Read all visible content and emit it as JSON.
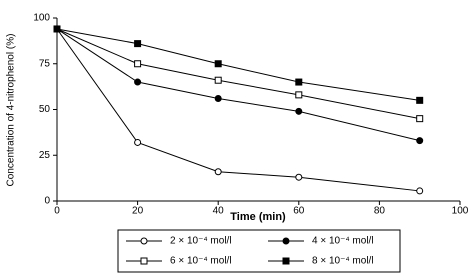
{
  "chart_data": {
    "type": "line",
    "x_label": "Time (min)",
    "y_label": "Concentration of 4-nitrophenol (%)",
    "x": [
      0,
      20,
      40,
      60,
      90
    ],
    "series": [
      {
        "name": "2 × 10⁻⁴ mol/l",
        "color": "#000000",
        "marker": "open-circle",
        "values": [
          94,
          32,
          16,
          13,
          5.5
        ]
      },
      {
        "name": "4 × 10⁻⁴ mol/l",
        "color": "#000000",
        "marker": "filled-circle",
        "values": [
          94,
          65,
          56,
          49,
          33
        ]
      },
      {
        "name": "6 × 10⁻⁴ mol/l",
        "color": "#000000",
        "marker": "open-square",
        "values": [
          94,
          75,
          66,
          58,
          45
        ]
      },
      {
        "name": "8 × 10⁻⁴ mol/l",
        "color": "#000000",
        "marker": "filled-square",
        "values": [
          94,
          86,
          75,
          65,
          55
        ]
      }
    ],
    "xlim": [
      0,
      100
    ],
    "xticks": [
      0,
      20,
      40,
      60,
      80,
      100
    ],
    "ylim": [
      0,
      100
    ],
    "yticks": [
      0,
      25,
      50,
      75,
      100
    ],
    "grid": false,
    "legend": "bottom"
  }
}
